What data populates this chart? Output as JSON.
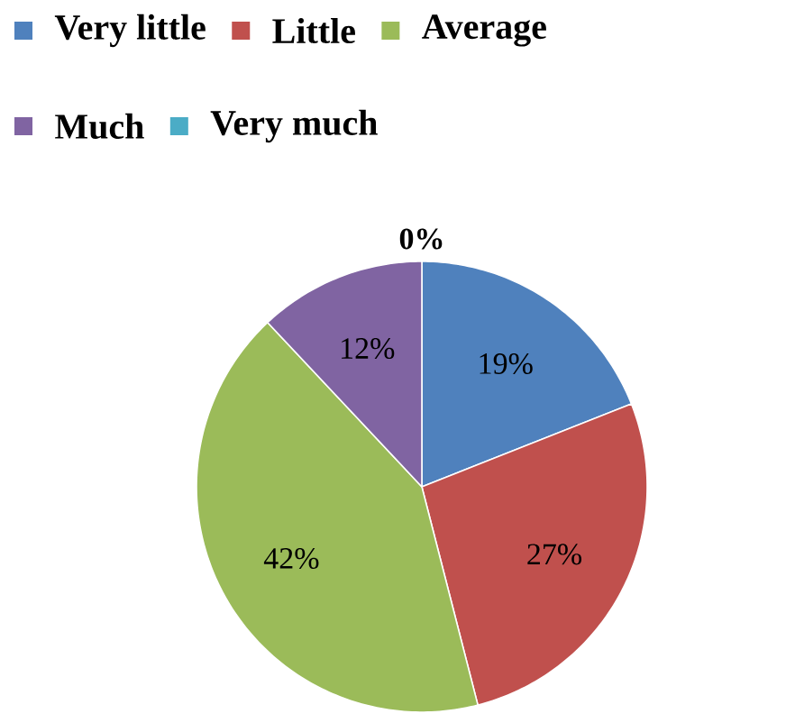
{
  "chart_data": {
    "type": "pie",
    "categories": [
      "Very little",
      "Little",
      "Average",
      "Much",
      "Very much"
    ],
    "values": [
      19,
      27,
      42,
      12,
      0
    ],
    "value_labels": [
      "19%",
      "27%",
      "42%",
      "12%",
      "0%"
    ],
    "colors": [
      "#4f81bd",
      "#c0504d",
      "#9bbb59",
      "#8064a2",
      "#4bacc6"
    ],
    "legend": "top"
  }
}
